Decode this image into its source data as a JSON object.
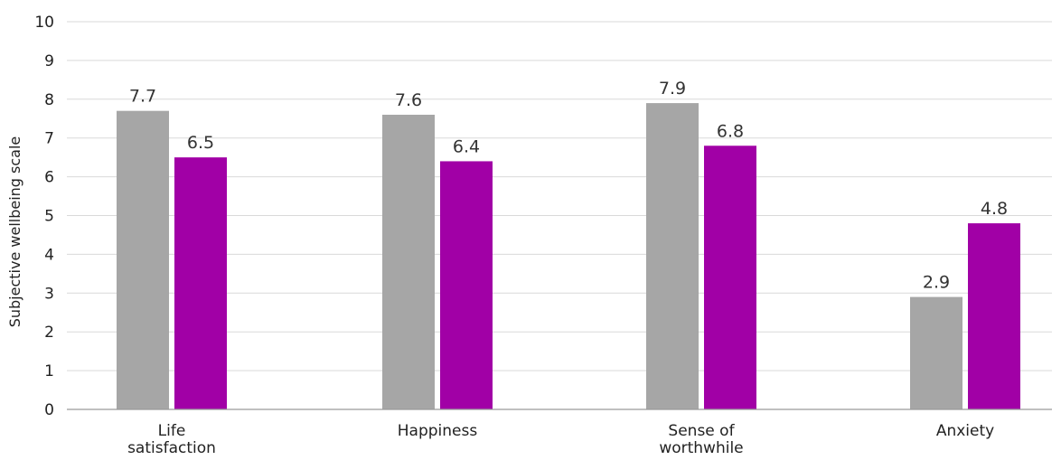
{
  "chart_data": {
    "type": "bar",
    "categories": [
      [
        "Life",
        "satisfaction"
      ],
      [
        "Happiness"
      ],
      [
        "Sense of",
        "worthwhile"
      ],
      [
        "Anxiety"
      ]
    ],
    "series": [
      {
        "color": "#a6a6a6",
        "values": [
          7.7,
          7.6,
          7.9,
          2.9
        ]
      },
      {
        "color": "#a100a6",
        "values": [
          6.5,
          6.4,
          6.8,
          4.8
        ]
      }
    ],
    "ylabel": "Subjective wellbeing scale",
    "ylim": [
      0,
      10
    ],
    "yticks": [
      "0",
      "1",
      "2",
      "3",
      "4",
      "5",
      "6",
      "7",
      "8",
      "9",
      "10"
    ],
    "grid": true
  }
}
